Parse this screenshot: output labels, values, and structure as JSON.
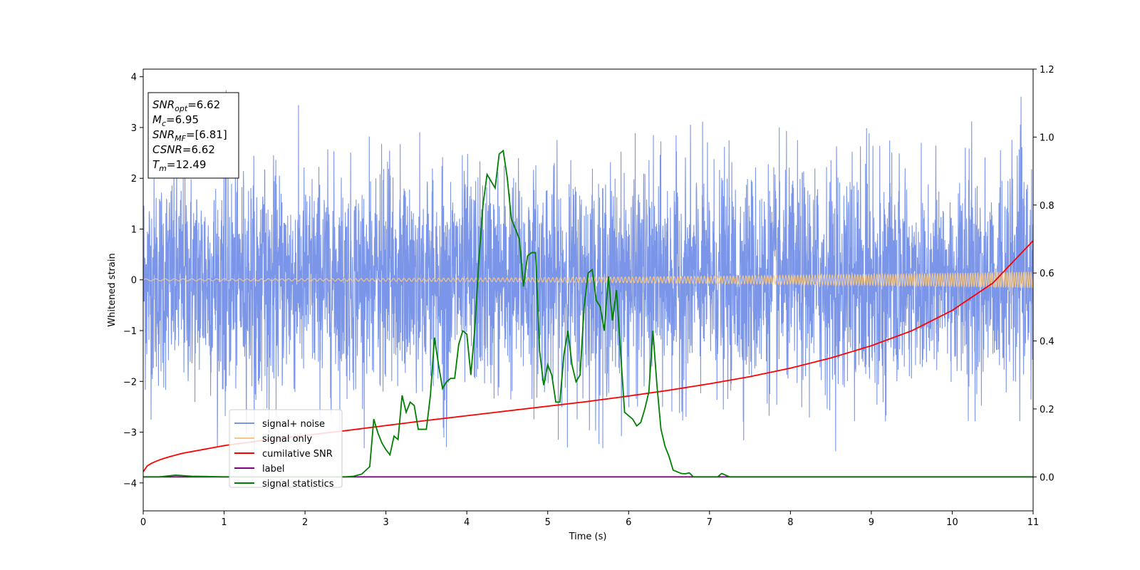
{
  "chart_data": {
    "type": "line",
    "xlabel": "Time (s)",
    "ylabel": "Whitened strain",
    "xlim": [
      0,
      11
    ],
    "ylim": [
      -4.55,
      4.15
    ],
    "y2lim": [
      -0.1,
      1.2
    ],
    "xticks": [
      "0",
      "1",
      "2",
      "3",
      "4",
      "5",
      "6",
      "7",
      "8",
      "9",
      "10",
      "11"
    ],
    "yticks": [
      "−4",
      "−3",
      "−2",
      "−1",
      "0",
      "1",
      "2",
      "3",
      "4"
    ],
    "y2ticks": [
      "0.0",
      "0.2",
      "0.4",
      "0.6",
      "0.8",
      "1.0",
      "1.2"
    ],
    "grid": false,
    "legend_position": "lower-left",
    "annotation": {
      "lines": [
        {
          "sym": "SNR",
          "sub": "opt",
          "val": "=6.62"
        },
        {
          "sym": "M",
          "sub": "c",
          "val": "=6.95"
        },
        {
          "sym": "SNR",
          "sub": "MF",
          "val": "=[6.81]"
        },
        {
          "sym": "CSNR",
          "sub": "",
          "val": "=6.62"
        },
        {
          "sym": "T",
          "sub": "m",
          "val": "=12.49"
        }
      ]
    },
    "series": [
      {
        "name": "signal+ noise",
        "color": "#7b95e8",
        "axis": "left",
        "kind": "noise",
        "sigma": 1.0,
        "display_range": [
          -3.4,
          3.75
        ],
        "x_range": [
          0,
          11
        ]
      },
      {
        "name": "signal only",
        "color": "#f7c784",
        "axis": "left",
        "kind": "chirp",
        "amplitude_start": 0.02,
        "amplitude_end": 0.16,
        "x_range": [
          0,
          11
        ]
      },
      {
        "name": "cumilative SNR",
        "color": "#ff0000",
        "axis": "right",
        "x": [
          0,
          0.5,
          1,
          1.5,
          2,
          2.5,
          3,
          3.5,
          4,
          4.5,
          5,
          5.5,
          6,
          6.5,
          7,
          7.5,
          8,
          8.5,
          9,
          9.5,
          10,
          10.5,
          11
        ],
        "values": [
          0.015,
          0.07,
          0.092,
          0.108,
          0.122,
          0.136,
          0.151,
          0.166,
          0.18,
          0.194,
          0.208,
          0.222,
          0.238,
          0.255,
          0.274,
          0.295,
          0.32,
          0.35,
          0.386,
          0.43,
          0.49,
          0.57,
          0.695
        ]
      },
      {
        "name": "label",
        "color": "#800080",
        "axis": "right",
        "x": [
          0,
          11
        ],
        "values": [
          0.0,
          0.0
        ]
      },
      {
        "name": "signal statistics",
        "color": "#008000",
        "axis": "right",
        "x": [
          0,
          0.2,
          0.4,
          0.6,
          0.8,
          1.0,
          1.5,
          2.0,
          2.5,
          2.6,
          2.7,
          2.8,
          2.85,
          2.9,
          2.95,
          3.0,
          3.05,
          3.1,
          3.15,
          3.2,
          3.25,
          3.3,
          3.35,
          3.4,
          3.45,
          3.5,
          3.55,
          3.6,
          3.65,
          3.7,
          3.75,
          3.8,
          3.85,
          3.9,
          3.95,
          4.0,
          4.05,
          4.1,
          4.15,
          4.2,
          4.25,
          4.3,
          4.35,
          4.4,
          4.45,
          4.5,
          4.55,
          4.6,
          4.65,
          4.7,
          4.75,
          4.8,
          4.85,
          4.9,
          4.95,
          5.0,
          5.05,
          5.1,
          5.15,
          5.2,
          5.25,
          5.3,
          5.35,
          5.4,
          5.45,
          5.5,
          5.55,
          5.6,
          5.65,
          5.7,
          5.75,
          5.8,
          5.85,
          5.9,
          5.95,
          6.0,
          6.05,
          6.1,
          6.15,
          6.2,
          6.25,
          6.3,
          6.35,
          6.4,
          6.45,
          6.5,
          6.55,
          6.6,
          6.65,
          6.7,
          6.75,
          6.8,
          6.85,
          6.9,
          6.95,
          7.0,
          7.05,
          7.1,
          7.15,
          7.2,
          7.25,
          7.3,
          7.35,
          7.4,
          7.45,
          7.5,
          7.6,
          7.7,
          7.8,
          7.9,
          8.0,
          8.2,
          8.5,
          9.0,
          9.5,
          10.0,
          10.5,
          10.8,
          11.0
        ],
        "values": [
          0.0,
          0.0,
          0.005,
          0.002,
          0.001,
          0.0,
          0.0,
          0.0,
          0.0,
          0.002,
          0.008,
          0.03,
          0.17,
          0.13,
          0.1,
          0.08,
          0.065,
          0.12,
          0.11,
          0.24,
          0.19,
          0.22,
          0.21,
          0.14,
          0.14,
          0.14,
          0.24,
          0.41,
          0.33,
          0.26,
          0.28,
          0.29,
          0.29,
          0.39,
          0.43,
          0.42,
          0.3,
          0.44,
          0.64,
          0.8,
          0.89,
          0.87,
          0.85,
          0.95,
          0.96,
          0.88,
          0.76,
          0.73,
          0.7,
          0.56,
          0.65,
          0.66,
          0.66,
          0.37,
          0.27,
          0.33,
          0.3,
          0.22,
          0.22,
          0.36,
          0.43,
          0.33,
          0.28,
          0.3,
          0.5,
          0.6,
          0.61,
          0.52,
          0.5,
          0.43,
          0.59,
          0.46,
          0.55,
          0.37,
          0.19,
          0.18,
          0.17,
          0.15,
          0.16,
          0.2,
          0.25,
          0.43,
          0.27,
          0.14,
          0.09,
          0.06,
          0.02,
          0.015,
          0.01,
          0.009,
          0.012,
          0.0,
          0.0,
          0.0,
          0.0,
          0.0,
          0.0,
          0.0,
          0.01,
          0.005,
          0.0,
          0.0,
          0.0,
          0.0,
          0.0,
          0.0,
          0.0,
          0.0,
          0.0,
          0.0,
          0.0,
          0.0,
          0.0,
          0.0,
          0.0,
          0.0,
          0.0,
          0.0,
          0.0
        ]
      }
    ]
  }
}
